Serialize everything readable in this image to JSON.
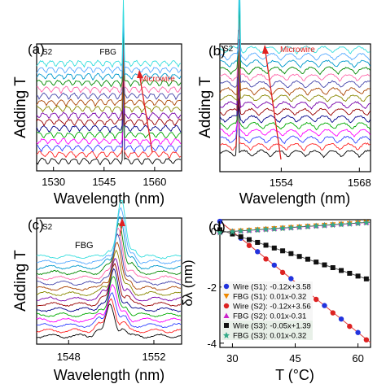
{
  "figure": {
    "panels": [
      {
        "id": "a",
        "panel_label": "(a)",
        "sample_label": "S2",
        "ylabel": "Adding T",
        "xlabel": "Wavelength (nm)",
        "xticks": [
          "1530",
          "1545",
          "1560"
        ],
        "annotations": [
          "FBG",
          "Microwire"
        ]
      },
      {
        "id": "b",
        "panel_label": "(b)",
        "sample_label": "S2",
        "ylabel": "Adding T",
        "xlabel": "Wavelength (nm)",
        "xticks": [
          "1554",
          "1568"
        ],
        "annotations": [
          "Microwire"
        ]
      },
      {
        "id": "c",
        "panel_label": "(c)",
        "sample_label": "S2",
        "ylabel": "Adding T",
        "xlabel": "Wavelength (nm)",
        "xticks": [
          "1548",
          "1552"
        ],
        "annotations": [
          "FBG"
        ]
      },
      {
        "id": "d",
        "panel_label": "(d)",
        "ylabel": "δλ (nm)",
        "xlabel": "T (°C)",
        "xticks": [
          "30",
          "45",
          "60"
        ],
        "yticks": [
          "0",
          "-2",
          "-4"
        ]
      }
    ]
  },
  "chart_data": [
    {
      "type": "line",
      "panel": "a",
      "xlabel": "Wavelength (nm)",
      "ylabel": "Adding T",
      "xlim": [
        1525,
        1568
      ],
      "x_ticks": [
        1530,
        1545,
        1560
      ],
      "series_count": 16,
      "fbg_peak_nm": 1550.7,
      "annotations": [
        "FBG",
        "Microwire"
      ]
    },
    {
      "type": "line",
      "panel": "b",
      "xlabel": "Wavelength (nm)",
      "ylabel": "Adding T",
      "xlim": [
        1543,
        1570
      ],
      "x_ticks": [
        1554,
        1568
      ],
      "series_count": 16,
      "annotations": [
        "Microwire"
      ]
    },
    {
      "type": "line",
      "panel": "c",
      "xlabel": "Wavelength (nm)",
      "ylabel": "Adding T",
      "xlim": [
        1546.5,
        1553.3
      ],
      "x_ticks": [
        1548,
        1552
      ],
      "series_count": 16,
      "fbg_peak_nm": 1550.2,
      "annotations": [
        "FBG"
      ]
    },
    {
      "type": "scatter",
      "panel": "d",
      "xlabel": "T (°C)",
      "ylabel": "δλ (nm)",
      "xlim": [
        27,
        63
      ],
      "ylim": [
        -4.15,
        0.4
      ],
      "x_ticks": [
        30,
        45,
        60
      ],
      "y_ticks": [
        0,
        -2,
        -4
      ],
      "x": [
        27,
        30,
        32,
        34,
        36,
        38,
        40,
        42,
        44,
        46,
        48,
        50,
        52,
        54,
        56,
        58,
        60,
        62
      ],
      "legend_position": "bottom-left",
      "series": [
        {
          "name": "Wire (S1): -0.12x+3.58",
          "fit": [
            -0.12,
            3.58
          ],
          "color": "#2233dd",
          "marker": "circle"
        },
        {
          "name": "FBG (S1): 0.01x-0.32",
          "fit": [
            0.01,
            -0.32
          ],
          "color": "#ee8800",
          "marker": "triangle-down"
        },
        {
          "name": "Wire (S2): -0.12x+3.56",
          "fit": [
            -0.12,
            3.56
          ],
          "color": "#dd2222",
          "marker": "circle"
        },
        {
          "name": "FBG (S2): 0.01x-0.31",
          "fit": [
            0.01,
            -0.31
          ],
          "color": "#cc22cc",
          "marker": "triangle-up"
        },
        {
          "name": "Wire (S3): -0.05x+1.39",
          "fit": [
            -0.05,
            1.39
          ],
          "color": "#111111",
          "marker": "square"
        },
        {
          "name": "FBG (S3): 0.01x-0.32",
          "fit": [
            0.01,
            -0.32
          ],
          "color": "#33aa88",
          "marker": "star"
        }
      ]
    }
  ]
}
